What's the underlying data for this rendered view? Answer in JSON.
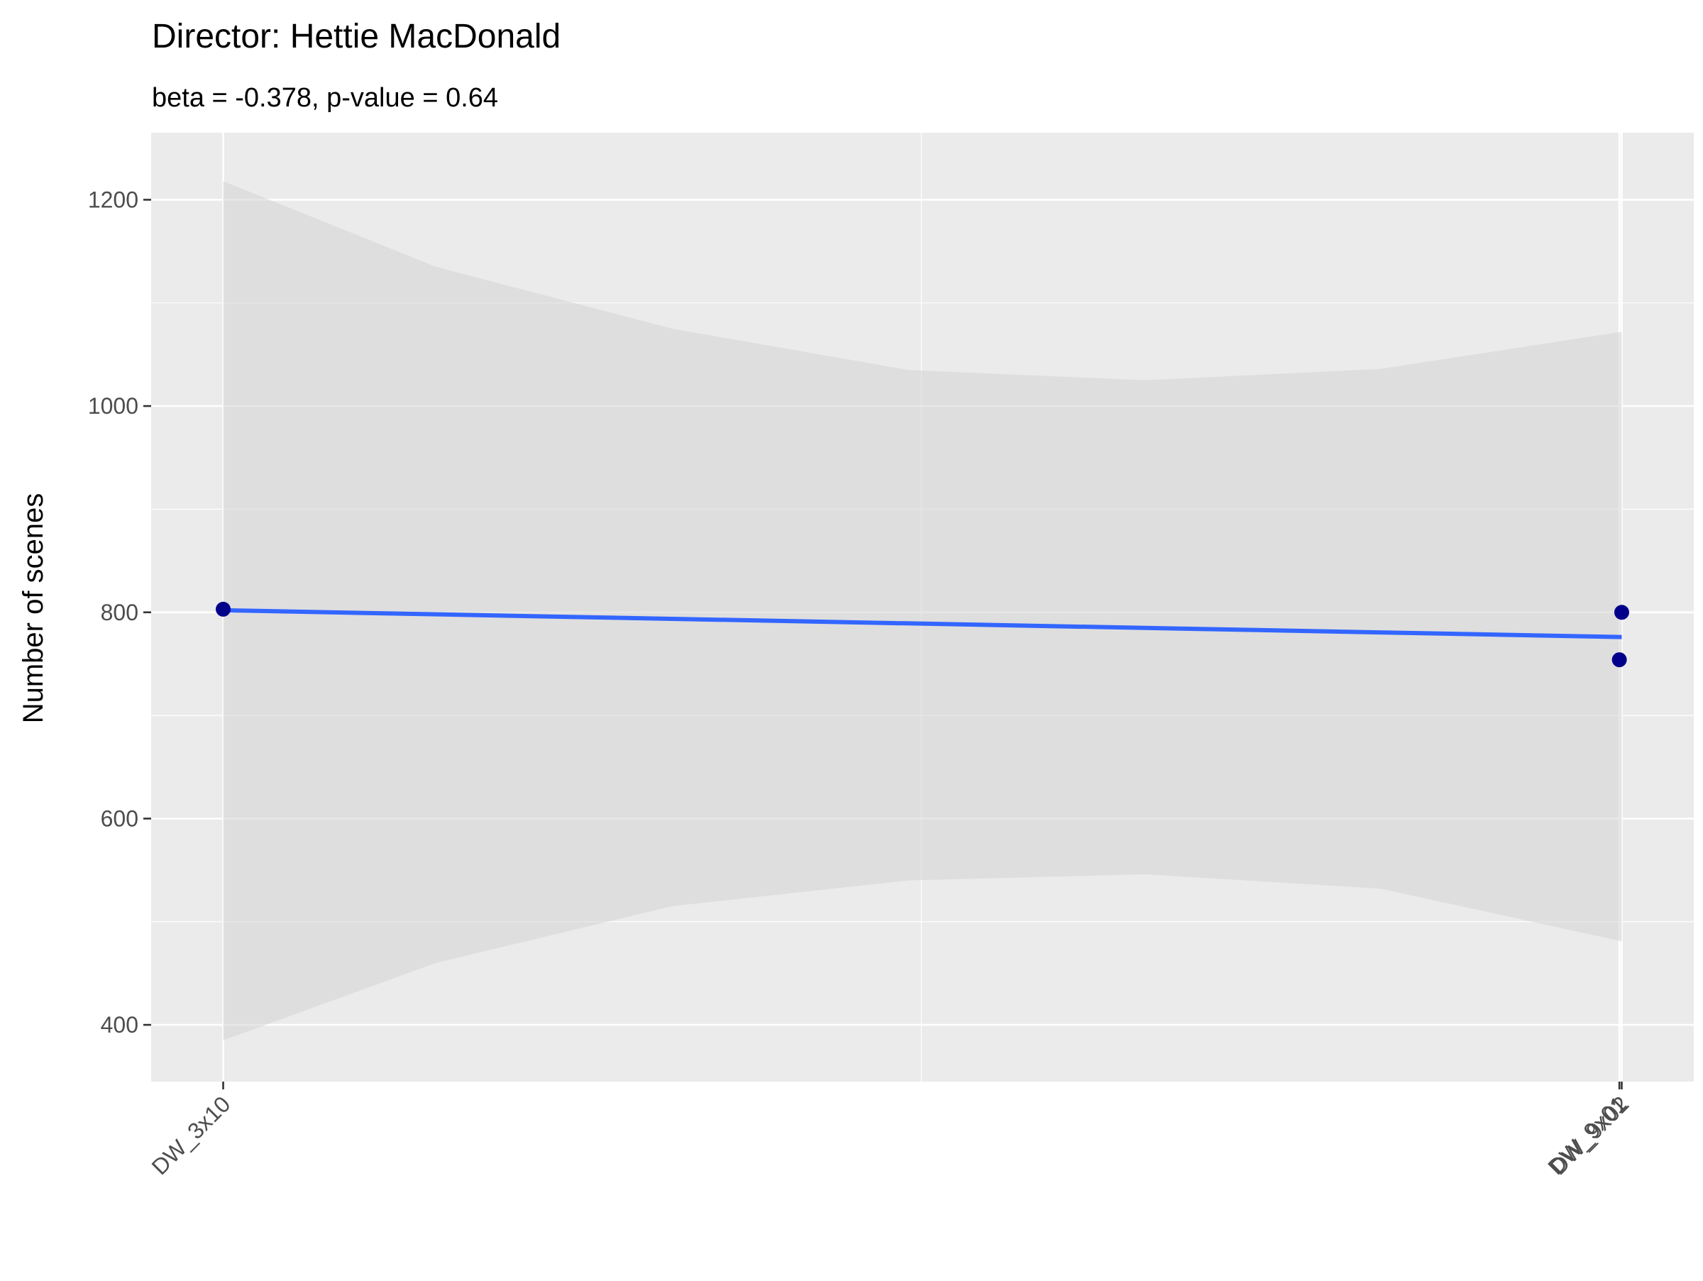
{
  "chart_data": {
    "type": "scatter",
    "title": "Director: Hettie MacDonald",
    "subtitle": "beta = -0.378, p-value = 0.64",
    "xlabel": "",
    "ylabel": "Number of scenes",
    "x_ticks": [
      {
        "label": "DW_3x10",
        "x": 3.1
      },
      {
        "label": "DW_9x01",
        "x": 9.01
      },
      {
        "label": "DW_9x02",
        "x": 9.02
      }
    ],
    "y_ticks": [
      400,
      600,
      800,
      1000,
      1200
    ],
    "xlim": [
      2.795,
      9.325
    ],
    "ylim": [
      345,
      1265
    ],
    "grid": true,
    "points": [
      {
        "label": "DW_3x10",
        "x": 3.1,
        "y": 803
      },
      {
        "label": "DW_9x01",
        "x": 9.01,
        "y": 754
      },
      {
        "label": "DW_9x02",
        "x": 9.02,
        "y": 800
      }
    ],
    "trend": {
      "x": [
        3.1,
        9.02
      ],
      "y": [
        802,
        776
      ]
    },
    "confidence_band": {
      "x": [
        3.1,
        4.0,
        5.0,
        6.0,
        7.0,
        8.0,
        9.02
      ],
      "upper": [
        1218,
        1135,
        1075,
        1035,
        1025,
        1036,
        1072
      ],
      "lower": [
        385,
        460,
        515,
        540,
        546,
        532,
        481
      ]
    },
    "colors": {
      "panel": "#ebebeb",
      "grid": "#ffffff",
      "points": "#00008b",
      "trend": "#3366ff",
      "band": "#d3d3d3"
    }
  }
}
